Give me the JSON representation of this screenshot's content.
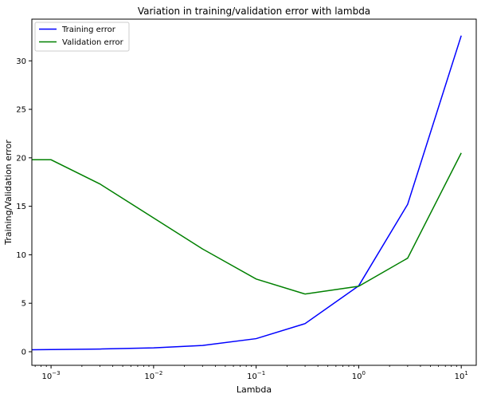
{
  "chart_data": {
    "type": "line",
    "title": "Variation in training/validation error with lambda",
    "xlabel": "Lambda",
    "ylabel": "Training/Validation error",
    "xscale": "log",
    "xlim": [
      0.00065,
      14
    ],
    "ylim": [
      -1.4,
      34.3
    ],
    "x": [
      0.00065,
      0.001,
      0.003,
      0.01,
      0.03,
      0.1,
      0.3,
      1,
      3,
      10
    ],
    "series": [
      {
        "name": "Training error",
        "color": "#0000ff",
        "values": [
          0.2,
          0.22,
          0.28,
          0.4,
          0.65,
          1.35,
          2.9,
          6.8,
          15.2,
          32.6
        ]
      },
      {
        "name": "Validation error",
        "color": "#008000",
        "values": [
          19.8,
          19.8,
          17.3,
          13.8,
          10.6,
          7.5,
          5.95,
          6.75,
          9.65,
          20.5
        ]
      }
    ],
    "xticks": [
      {
        "value": 0.001,
        "base": "10",
        "exp": "−3"
      },
      {
        "value": 0.01,
        "base": "10",
        "exp": "−2"
      },
      {
        "value": 0.1,
        "base": "10",
        "exp": "−1"
      },
      {
        "value": 1,
        "base": "10",
        "exp": "0"
      },
      {
        "value": 10,
        "base": "10",
        "exp": "1"
      }
    ],
    "yticks": [
      0,
      5,
      10,
      15,
      20,
      25,
      30
    ],
    "grid": false,
    "legend": "top-left"
  }
}
